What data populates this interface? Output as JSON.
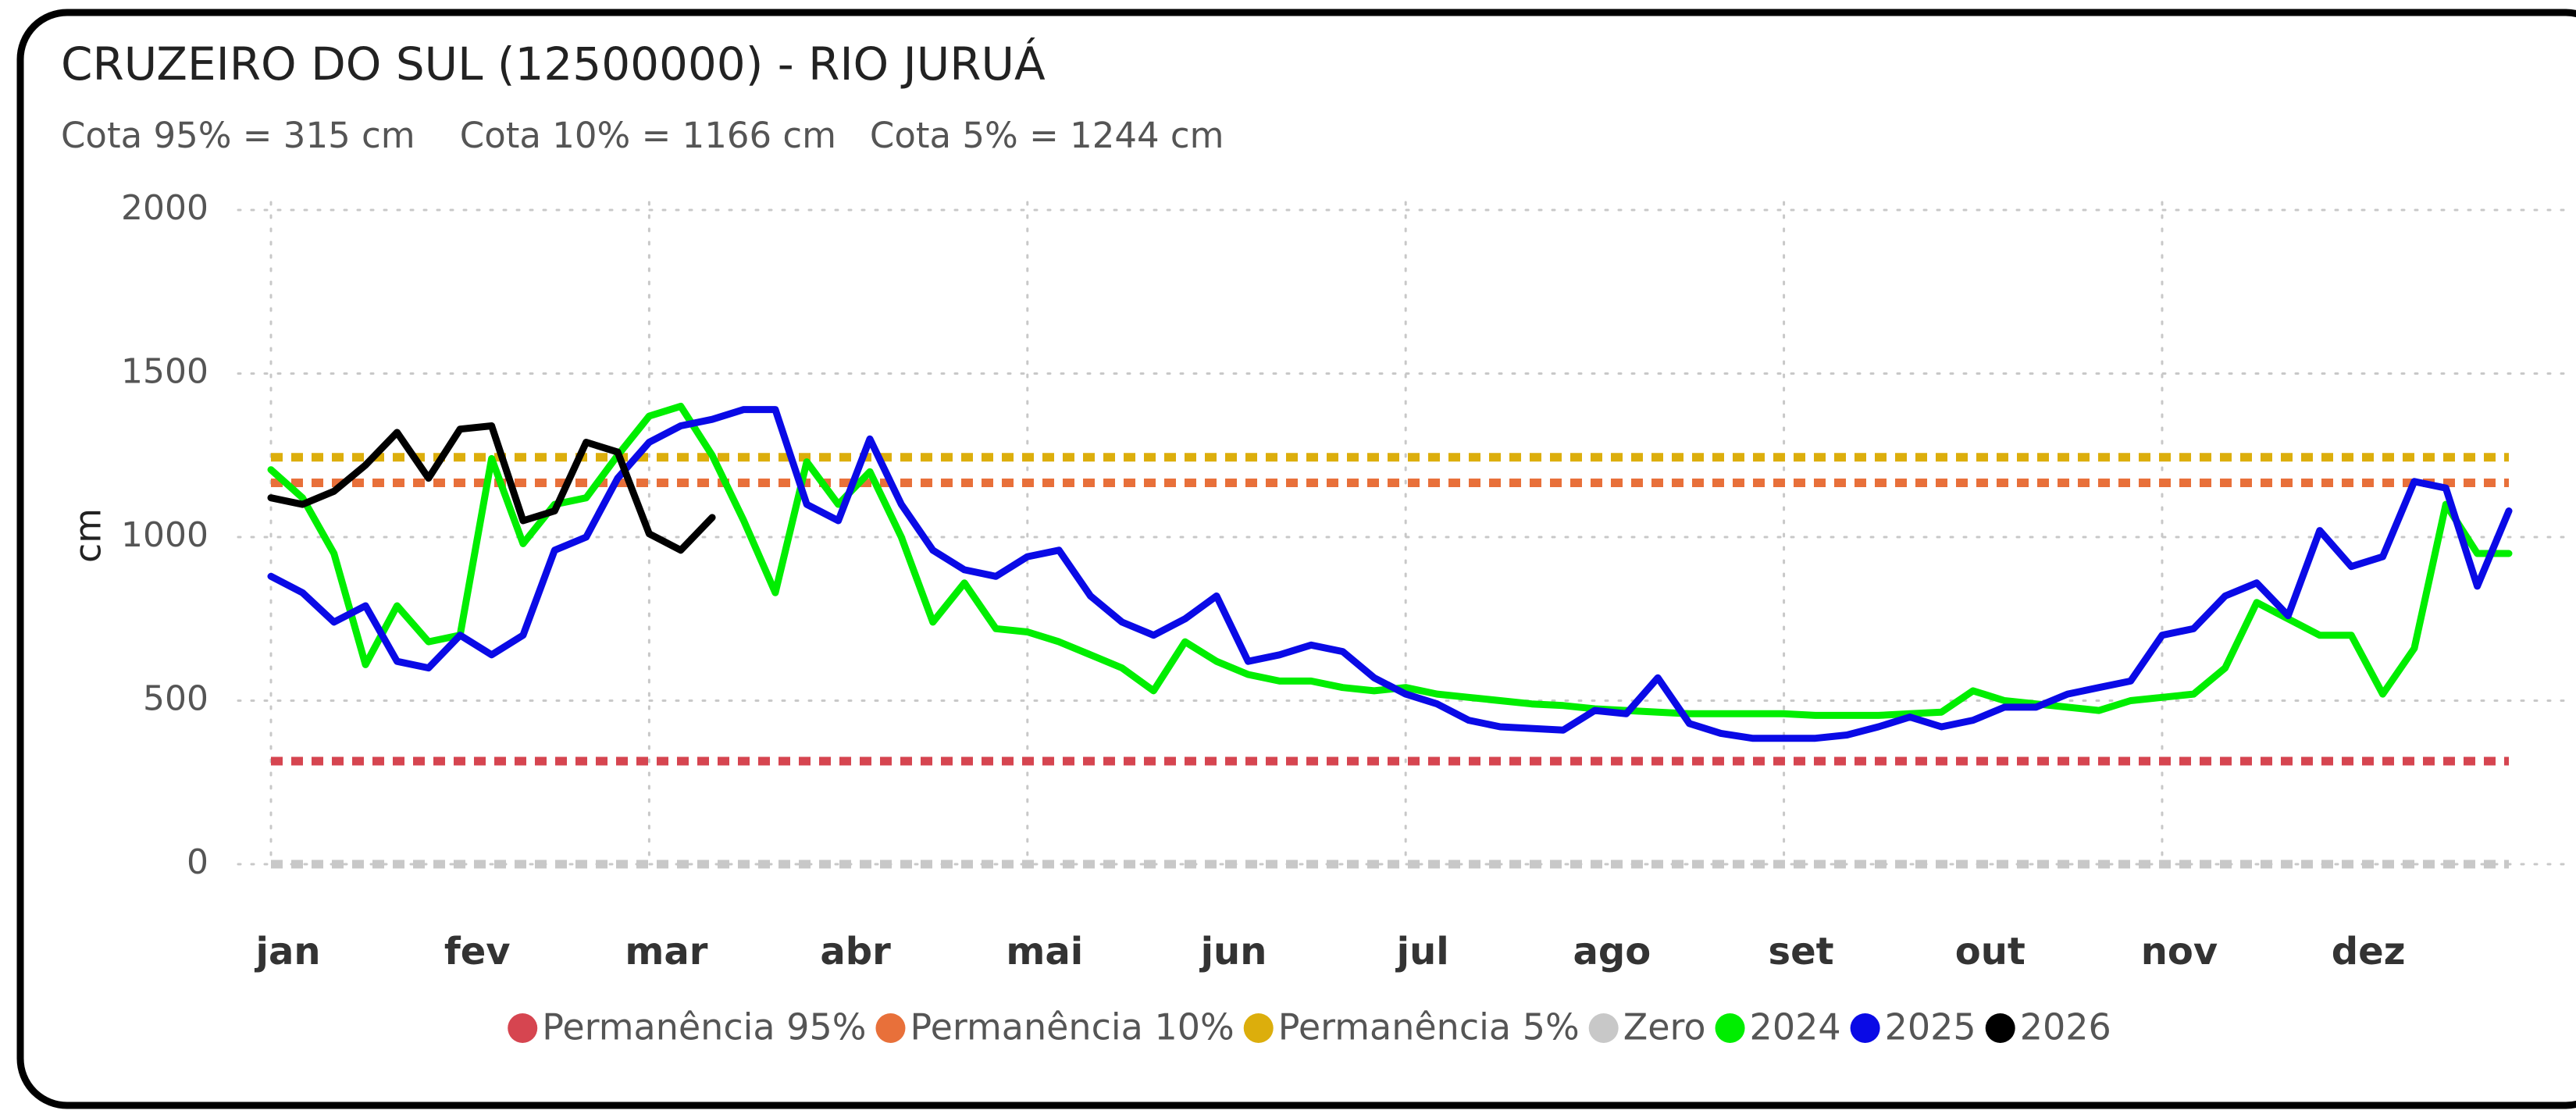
{
  "chart_data": {
    "type": "line",
    "title": "CRUZEIRO DO SUL (12500000) - RIO JURUÁ",
    "subtitle": "Cota 95% = 315 cm    Cota 10% = 1166 cm   Cota 5% = 1244 cm",
    "y_label": "cm",
    "ylim": [
      0,
      2000
    ],
    "yticks": [
      0,
      500,
      1000,
      1500,
      2000
    ],
    "grid": true,
    "categories": [
      "jan",
      null,
      null,
      null,
      null,
      null,
      "fev",
      null,
      null,
      null,
      null,
      null,
      "mar",
      null,
      null,
      null,
      null,
      null,
      "abr",
      null,
      null,
      null,
      null,
      null,
      "mai",
      null,
      null,
      null,
      null,
      null,
      "jun",
      null,
      null,
      null,
      null,
      null,
      "jul",
      null,
      null,
      null,
      null,
      null,
      "ago",
      null,
      null,
      null,
      null,
      null,
      "set",
      null,
      null,
      null,
      null,
      null,
      "out",
      null,
      null,
      null,
      null,
      null,
      "nov",
      null,
      null,
      null,
      null,
      null,
      "dez",
      null,
      null,
      null,
      null,
      null
    ],
    "series": [
      {
        "name": "Permanência 95%",
        "color": "#d64550",
        "value": 315,
        "dashed": true
      },
      {
        "name": "Permanência 10%",
        "color": "#e8703a",
        "value": 1166,
        "dashed": true
      },
      {
        "name": "Permanência 5%",
        "color": "#dcae0c",
        "value": 1244,
        "dashed": true
      },
      {
        "name": "Zero",
        "color": "#c8c8c8",
        "value": 0,
        "dashed": true
      },
      {
        "name": "2024",
        "color": "#00ee00",
        "values": [
          1206,
          1120,
          950,
          610,
          790,
          680,
          700,
          1240,
          980,
          1100,
          1120,
          1250,
          1370,
          1400,
          1250,
          1050,
          830,
          1230,
          1100,
          1200,
          1000,
          740,
          860,
          720,
          710,
          680,
          640,
          600,
          530,
          680,
          620,
          580,
          560,
          560,
          540,
          530,
          540,
          520,
          510,
          500,
          490,
          485,
          475,
          470,
          465,
          460,
          460,
          460,
          460,
          455,
          455,
          455,
          460,
          465,
          530,
          500,
          490,
          480,
          470,
          500,
          510,
          520,
          600,
          800,
          750,
          700,
          700,
          520,
          660,
          1100,
          950,
          950
        ]
      },
      {
        "name": "2025",
        "color": "#0a0ae6",
        "values": [
          880,
          830,
          740,
          790,
          620,
          600,
          700,
          640,
          700,
          960,
          1000,
          1180,
          1290,
          1340,
          1360,
          1390,
          1390,
          1100,
          1050,
          1300,
          1100,
          960,
          900,
          880,
          940,
          960,
          820,
          740,
          700,
          750,
          820,
          620,
          640,
          670,
          650,
          570,
          520,
          490,
          440,
          420,
          415,
          410,
          470,
          460,
          570,
          430,
          400,
          385,
          385,
          385,
          395,
          420,
          450,
          420,
          440,
          480,
          480,
          520,
          540,
          560,
          700,
          720,
          820,
          860,
          760,
          1020,
          910,
          940,
          1170,
          1150,
          850,
          1080
        ]
      },
      {
        "name": "2026",
        "color": "#000000",
        "values": [
          1120,
          1100,
          1140,
          1220,
          1320,
          1180,
          1330,
          1340,
          1050,
          1080,
          1290,
          1260,
          1010,
          960,
          1060,
          null,
          null,
          null,
          null,
          null,
          null,
          null,
          null,
          null,
          null,
          null,
          null,
          null,
          null,
          null,
          null,
          null,
          null,
          null,
          null,
          null,
          null,
          null,
          null,
          null,
          null,
          null,
          null,
          null,
          null,
          null,
          null,
          null,
          null,
          null,
          null,
          null,
          null,
          null,
          null,
          null,
          null,
          null,
          null,
          null,
          null,
          null,
          null,
          null,
          null,
          null,
          null,
          null,
          null,
          null,
          null,
          null
        ]
      }
    ]
  }
}
